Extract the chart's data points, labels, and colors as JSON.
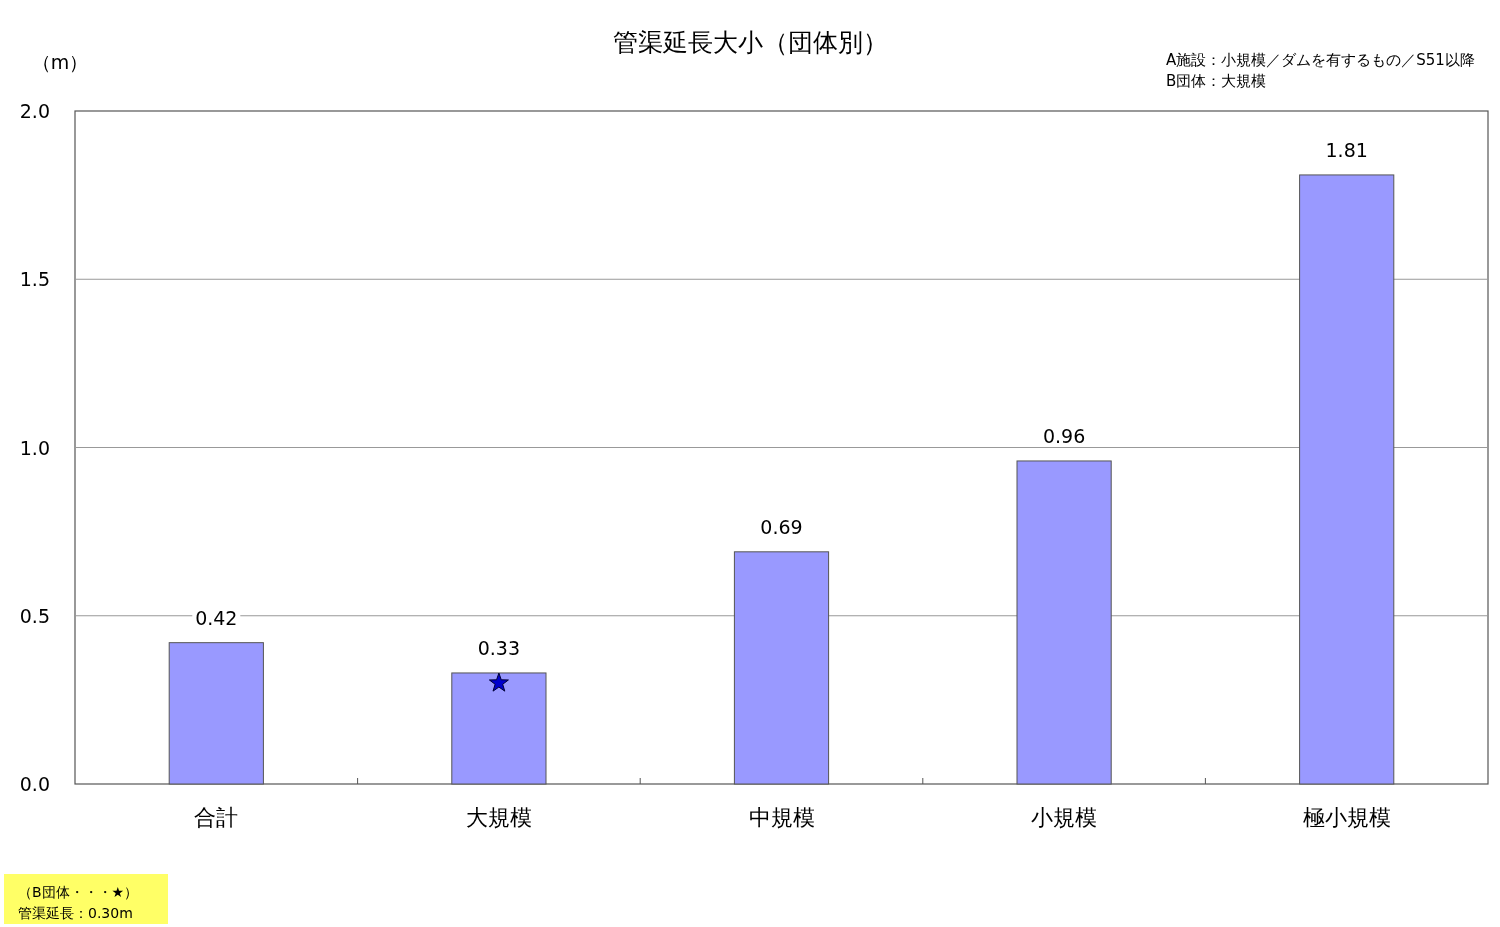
{
  "chart_data": {
    "type": "bar",
    "title": "管渠延長大小（団体別）",
    "ylabel": "（m）",
    "categories": [
      "合計",
      "大規模",
      "中規模",
      "小規模",
      "極小規模"
    ],
    "series": [
      {
        "type": "bar",
        "color": "#9999ff",
        "values": [
          0.42,
          0.33,
          0.69,
          0.96,
          1.81
        ],
        "value_labels": [
          "0.42",
          "0.33",
          "0.69",
          "0.96",
          "1.81"
        ]
      },
      {
        "type": "scatter",
        "x": [
          "大規模"
        ],
        "values": [
          0.3
        ],
        "color": "#0000cc",
        "marker": "star"
      }
    ],
    "ylim": [
      0,
      2
    ],
    "yticks": [
      {
        "value": 0,
        "label": "0.0"
      },
      {
        "value": 0.5,
        "label": "0.5"
      },
      {
        "value": 1,
        "label": "1.0"
      },
      {
        "value": 1.5,
        "label": "1.5"
      },
      {
        "value": 2,
        "label": "2.0"
      }
    ],
    "grid": "y",
    "annotations": [
      "A施設：小規模／ダムを有するもの／S51以降",
      "B団体：大規模",
      "（B団体・・・★）",
      "管渠延長：0.30m"
    ]
  }
}
